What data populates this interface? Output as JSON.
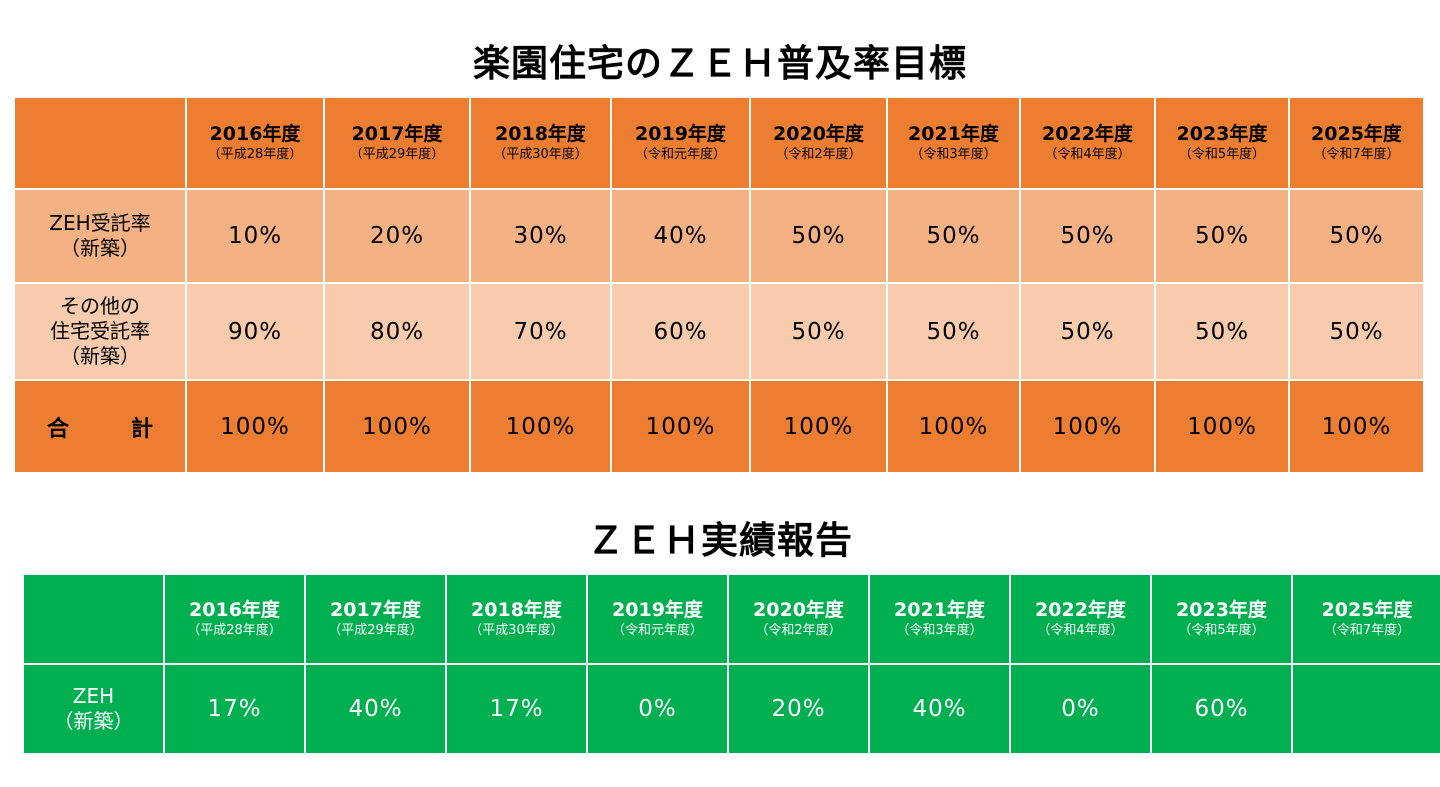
{
  "plan": {
    "title": "楽園住宅のＺＥＨ普及率目標",
    "years": [
      {
        "year": "2016年度",
        "era": "（平成28年度）"
      },
      {
        "year": "2017年度",
        "era": "（平成29年度）"
      },
      {
        "year": "2018年度",
        "era": "（平成30年度）"
      },
      {
        "year": "2019年度",
        "era": "（令和元年度）"
      },
      {
        "year": "2020年度",
        "era": "（令和2年度）"
      },
      {
        "year": "2021年度",
        "era": "（令和3年度）"
      },
      {
        "year": "2022年度",
        "era": "（令和4年度）"
      },
      {
        "year": "2023年度",
        "era": "（令和5年度）"
      },
      {
        "year": "2025年度",
        "era": "（令和7年度）"
      }
    ],
    "rows": [
      {
        "label_lines": [
          "ZEH受託率",
          "（新築）"
        ],
        "values": [
          "10%",
          "20%",
          "30%",
          "40%",
          "50%",
          "50%",
          "50%",
          "50%",
          "50%"
        ]
      },
      {
        "label_lines": [
          "その他の",
          "住宅受託率",
          "（新築）"
        ],
        "values": [
          "90%",
          "80%",
          "70%",
          "60%",
          "50%",
          "50%",
          "50%",
          "50%",
          "50%"
        ]
      }
    ],
    "total": {
      "label_chars": [
        "合",
        "計"
      ],
      "values": [
        "100%",
        "100%",
        "100%",
        "100%",
        "100%",
        "100%",
        "100%",
        "100%",
        "100%"
      ]
    }
  },
  "results": {
    "title": "ＺＥＨ実績報告",
    "years": [
      {
        "year": "2016年度",
        "era": "（平成28年度）"
      },
      {
        "year": "2017年度",
        "era": "（平成29年度）"
      },
      {
        "year": "2018年度",
        "era": "（平成30年度）"
      },
      {
        "year": "2019年度",
        "era": "（令和元年度）"
      },
      {
        "year": "2020年度",
        "era": "（令和2年度）"
      },
      {
        "year": "2021年度",
        "era": "（令和3年度）"
      },
      {
        "year": "2022年度",
        "era": "（令和4年度）"
      },
      {
        "year": "2023年度",
        "era": "（令和5年度）"
      },
      {
        "year": "2025年度",
        "era": "（令和7年度）"
      }
    ],
    "row": {
      "label_lines": [
        "ZEH",
        "（新築）"
      ],
      "values": [
        "17%",
        "40%",
        "17%",
        "0%",
        "20%",
        "40%",
        "0%",
        "60%",
        ""
      ]
    }
  },
  "colors": {
    "plan_header": "#ed7d31",
    "plan_row1": "#f4b183",
    "plan_row2": "#f8cbad",
    "results_bg": "#00b050"
  }
}
